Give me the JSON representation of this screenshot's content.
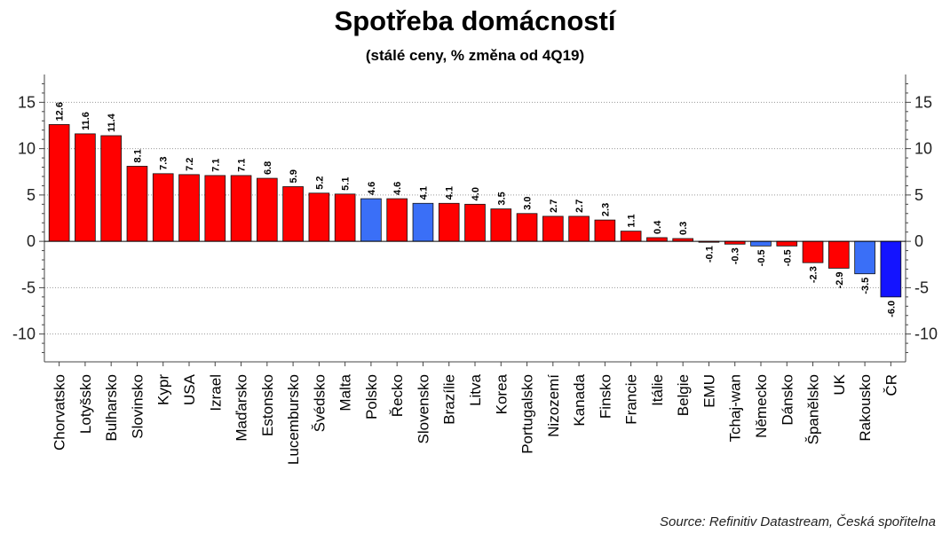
{
  "chart_data": {
    "type": "bar",
    "title": "Spotřeba domácností",
    "subtitle": "(stálé ceny, % změna od 4Q19)",
    "source": "Source: Refinitiv Datastream, Česká spořitelna",
    "ylim": [
      -13,
      18
    ],
    "yticks": [
      -10,
      -5,
      0,
      5,
      10,
      15
    ],
    "ytick_labels": [
      "-10",
      "-5",
      "0",
      "5",
      "10",
      "15"
    ],
    "grid": true,
    "colors": {
      "red": "#ff0000",
      "light_blue": "#3a6ff7",
      "dark_blue": "#1414ff",
      "grid": "#9a9a9a",
      "axis": "#444444"
    },
    "categories": [
      "Chorvatsko",
      "Lotyšsko",
      "Bulharsko",
      "Slovinsko",
      "Kypr",
      "USA",
      "Izrael",
      "Maďarsko",
      "Estonsko",
      "Lucembursko",
      "Švédsko",
      "Malta",
      "Polsko",
      "Řecko",
      "Slovensko",
      "Brazílie",
      "Litva",
      "Korea",
      "Portugalsko",
      "Nizozemí",
      "Kanada",
      "Finsko",
      "Francie",
      "Itálie",
      "Belgie",
      "EMU",
      "Tchaj-wan",
      "Německo",
      "Dánsko",
      "Španělsko",
      "UK",
      "Rakousko",
      "ČR"
    ],
    "values": [
      12.6,
      11.6,
      11.4,
      8.1,
      7.3,
      7.2,
      7.1,
      7.1,
      6.8,
      5.9,
      5.2,
      5.1,
      4.6,
      4.6,
      4.1,
      4.1,
      4.0,
      3.5,
      3.0,
      2.7,
      2.7,
      2.3,
      1.1,
      0.4,
      0.3,
      -0.1,
      -0.3,
      -0.5,
      -0.5,
      -2.3,
      -2.9,
      -3.5,
      -6.0
    ],
    "value_labels": [
      "12.6",
      "11.6",
      "11.4",
      "8.1",
      "7.3",
      "7.2",
      "7.1",
      "7.1",
      "6.8",
      "5.9",
      "5.2",
      "5.1",
      "4.6",
      "4.6",
      "4.1",
      "4.1",
      "4.0",
      "3.5",
      "3.0",
      "2.7",
      "2.7",
      "2.3",
      "1.1",
      "0.4",
      "0.3",
      "-0.1",
      "-0.3",
      "-0.5",
      "-0.5",
      "-2.3",
      "-2.9",
      "-3.5",
      "-6.0"
    ],
    "bar_colors": [
      "red",
      "red",
      "red",
      "red",
      "red",
      "red",
      "red",
      "red",
      "red",
      "red",
      "red",
      "red",
      "light_blue",
      "red",
      "light_blue",
      "red",
      "red",
      "red",
      "red",
      "red",
      "red",
      "red",
      "red",
      "red",
      "red",
      "red",
      "red",
      "light_blue",
      "red",
      "red",
      "red",
      "light_blue",
      "dark_blue"
    ]
  }
}
